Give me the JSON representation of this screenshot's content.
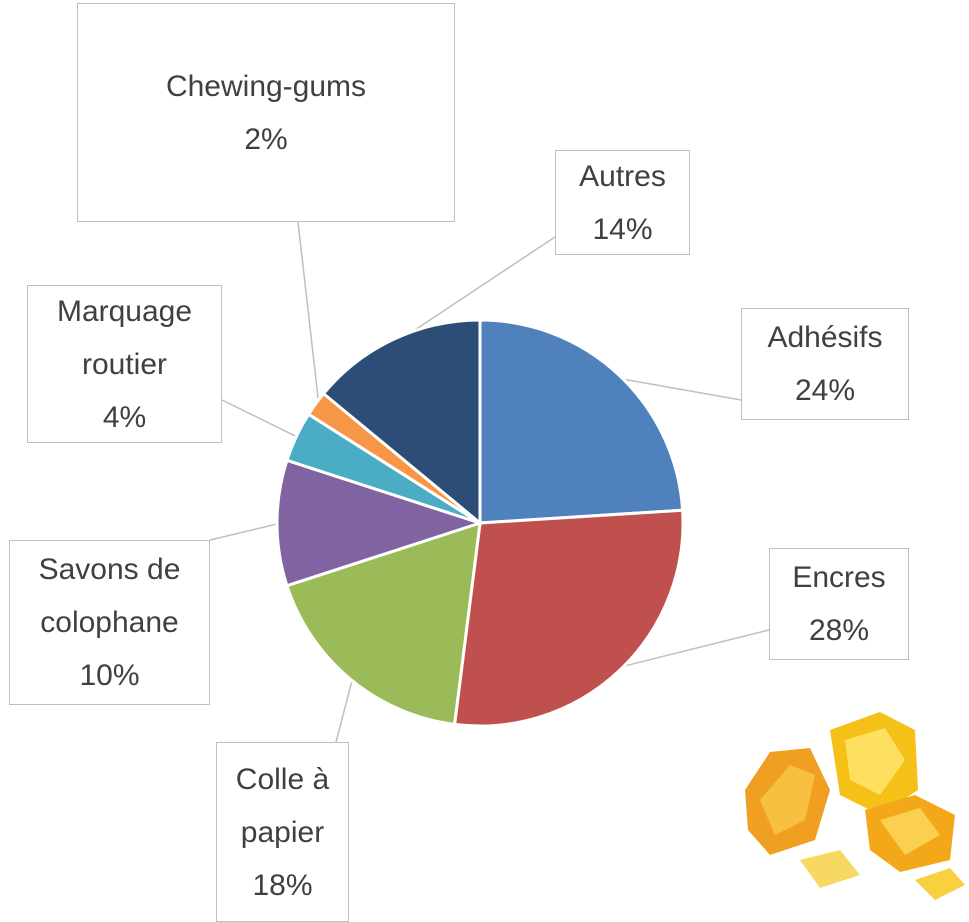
{
  "chart_data": {
    "type": "pie",
    "categories": [
      "Adhésifs",
      "Encres",
      "Colle à papier",
      "Savons de colophane",
      "Marquage routier",
      "Chewing-gums",
      "Autres"
    ],
    "values": [
      24,
      28,
      18,
      10,
      4,
      2,
      14
    ],
    "value_labels": [
      "24%",
      "28%",
      "18%",
      "10%",
      "4%",
      "2%",
      "14%"
    ],
    "colors": [
      "#4f81bd",
      "#c0504d",
      "#9bbb59",
      "#8064a2",
      "#4bacc6",
      "#f79646",
      "#2c4d75"
    ]
  }
}
